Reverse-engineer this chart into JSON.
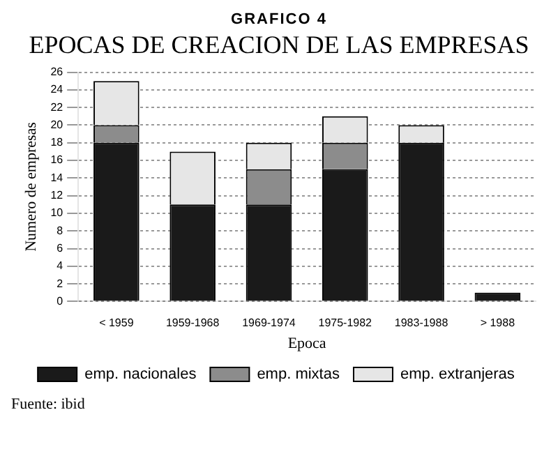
{
  "chart_data": {
    "type": "bar",
    "subtitle": "GRAFICO 4",
    "title": "EPOCAS DE CREACION DE LAS EMPRESAS",
    "xlabel": "Epoca",
    "ylabel": "Numero de empresas",
    "annotations": [
      "Fuente: ibid"
    ],
    "categories": [
      "< 1959",
      "1959-1968",
      "1969-1974",
      "1975-1982",
      "1983-1988",
      "> 1988"
    ],
    "series": [
      {
        "name": "emp. nacionales",
        "color": "#1a1a1a",
        "values": [
          18,
          11,
          11,
          15,
          18,
          1
        ]
      },
      {
        "name": "emp. mixtas",
        "color": "#8c8c8c",
        "values": [
          2,
          0,
          4,
          3,
          0,
          0
        ]
      },
      {
        "name": "emp. extranjeras",
        "color": "#e6e6e6",
        "values": [
          5,
          6,
          3,
          3,
          2,
          0
        ]
      }
    ],
    "stacked": true,
    "ylim": [
      0,
      26
    ],
    "yticks": [
      0,
      2,
      4,
      6,
      8,
      10,
      12,
      14,
      16,
      18,
      20,
      22,
      24,
      26
    ],
    "grid": "y",
    "legend": "bottom"
  }
}
